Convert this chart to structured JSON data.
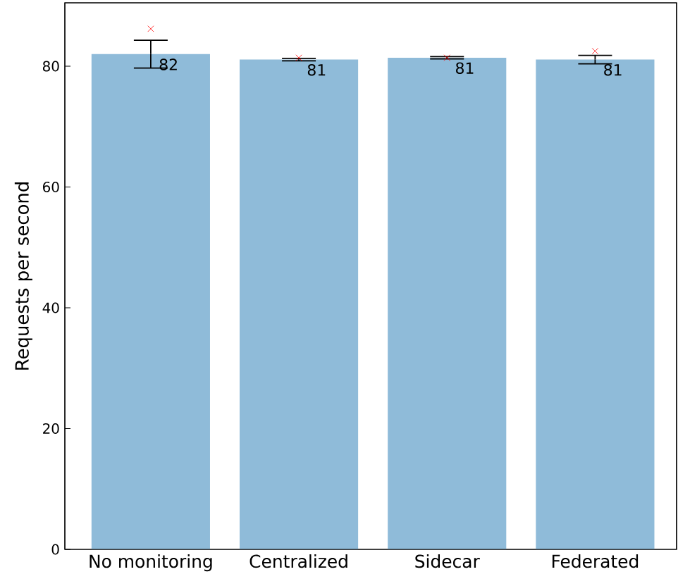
{
  "chart_data": {
    "type": "bar",
    "ylabel": "Requests per second",
    "categories": [
      "No monitoring",
      "Centralized",
      "Sidecar",
      "Federated"
    ],
    "series": [
      {
        "color": "#8fbbd9",
        "values": [
          82.0,
          81.1,
          81.4,
          81.1
        ],
        "errors": [
          2.3,
          0.2,
          0.2,
          0.7
        ],
        "value_labels": [
          "82",
          "81",
          "81",
          "81"
        ]
      },
      {
        "type": "scatter",
        "color": "#ff0000",
        "marker": "cross",
        "x": [
          "No monitoring",
          "Centralized",
          "Sidecar",
          "Federated"
        ],
        "values": [
          86.2,
          81.4,
          81.4,
          82.5
        ]
      }
    ],
    "ylim": [
      0,
      90.5
    ],
    "yticks": [
      0,
      20,
      40,
      60,
      80
    ],
    "grid": false
  }
}
